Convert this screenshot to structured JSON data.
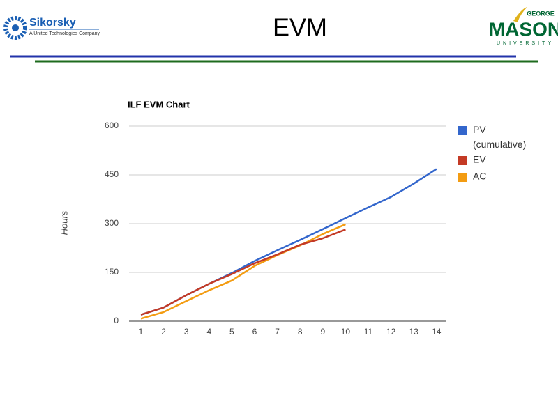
{
  "header": {
    "title": "EVM",
    "left_logo": {
      "name": "Sikorsky",
      "tagline": "A United Technologies Company"
    },
    "right_logo": {
      "top": "GEORGE",
      "name": "MASON",
      "bottom": "UNIVERSITY"
    }
  },
  "chart_data": {
    "type": "line",
    "title": "ILF EVM Chart",
    "y_label": "Hours",
    "categories": [
      "1",
      "2",
      "3",
      "4",
      "5",
      "6",
      "7",
      "8",
      "9",
      "10",
      "11",
      "12",
      "13",
      "14"
    ],
    "series": [
      {
        "name": "PV (cumulative)",
        "color": "#3366cc",
        "values": [
          20,
          42,
          80,
          115,
          148,
          185,
          218,
          250,
          283,
          317,
          350,
          382,
          423,
          468
        ]
      },
      {
        "name": "EV",
        "color": "#c43a25",
        "values": [
          20,
          42,
          80,
          115,
          145,
          178,
          205,
          235,
          255,
          282,
          null,
          null,
          null,
          null
        ]
      },
      {
        "name": "AC",
        "color": "#f39c12",
        "values": [
          8,
          28,
          62,
          95,
          125,
          170,
          203,
          233,
          268,
          298,
          null,
          null,
          null,
          null
        ]
      }
    ],
    "ylim": [
      0,
      600
    ],
    "yticks": [
      0,
      150,
      300,
      450,
      600
    ],
    "grid": true,
    "legend": "right"
  }
}
